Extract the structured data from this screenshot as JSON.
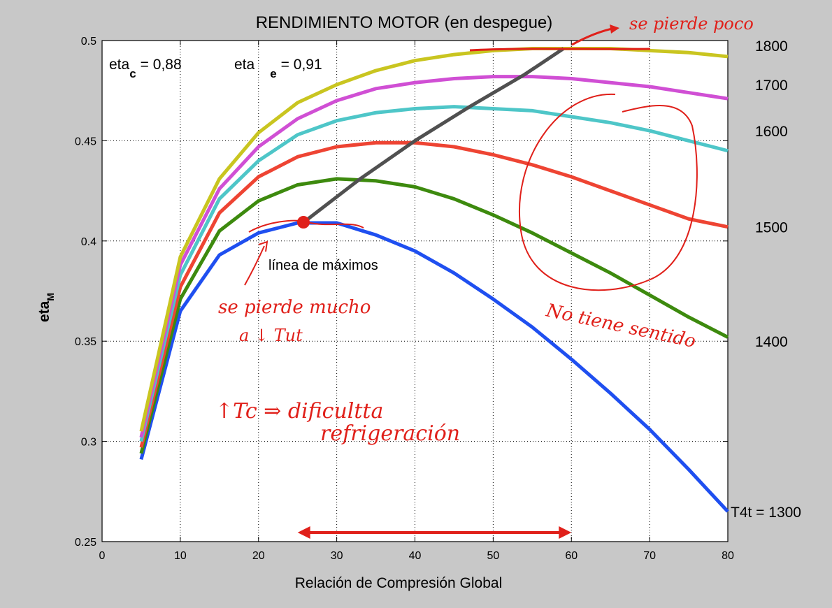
{
  "chart_data": {
    "type": "line",
    "title": "RENDIMIENTO MOTOR (en despegue)",
    "xlabel": "Relación de Compresión Global",
    "ylabel": "eta",
    "ylabel_sub": "M",
    "xlim": [
      0,
      80
    ],
    "ylim": [
      0.25,
      0.5
    ],
    "xticks": [
      0,
      10,
      20,
      30,
      40,
      50,
      60,
      70,
      80
    ],
    "yticks": [
      0.25,
      0.3,
      0.35,
      0.4,
      0.45,
      0.5
    ],
    "grid": true,
    "params": {
      "c_pre": "eta",
      "c_sub": "c",
      "c_val": "= 0,88",
      "e_pre": "eta",
      "e_sub": "e",
      "e_val": "= 0,91"
    },
    "x": [
      5,
      10,
      15,
      20,
      25,
      30,
      35,
      40,
      45,
      50,
      55,
      60,
      65,
      70,
      75,
      80
    ],
    "series": [
      {
        "label": "T4t = 1300",
        "color": "#1f4ff0",
        "values": [
          0.291,
          0.365,
          0.393,
          0.404,
          0.409,
          0.409,
          0.403,
          0.395,
          0.384,
          0.371,
          0.357,
          0.341,
          0.324,
          0.306,
          0.286,
          0.265
        ]
      },
      {
        "label": "1400",
        "color": "#3d8a0e",
        "values": [
          0.294,
          0.371,
          0.405,
          0.42,
          0.428,
          0.431,
          0.43,
          0.427,
          0.421,
          0.413,
          0.404,
          0.394,
          0.384,
          0.373,
          0.362,
          0.352
        ]
      },
      {
        "label": "1500",
        "color": "#ee4433",
        "values": [
          0.297,
          0.377,
          0.414,
          0.432,
          0.442,
          0.447,
          0.449,
          0.449,
          0.447,
          0.443,
          0.438,
          0.432,
          0.425,
          0.418,
          0.411,
          0.407
        ]
      },
      {
        "label": "1600",
        "color": "#4ec6c8",
        "values": [
          0.3,
          0.383,
          0.421,
          0.44,
          0.453,
          0.46,
          0.464,
          0.466,
          0.467,
          0.466,
          0.465,
          0.462,
          0.459,
          0.455,
          0.45,
          0.445
        ]
      },
      {
        "label": "1700",
        "color": "#d04fd4",
        "values": [
          0.302,
          0.388,
          0.426,
          0.447,
          0.461,
          0.47,
          0.476,
          0.479,
          0.481,
          0.482,
          0.482,
          0.481,
          0.479,
          0.477,
          0.474,
          0.471
        ]
      },
      {
        "label": "1800",
        "color": "#c9c520",
        "values": [
          0.305,
          0.392,
          0.431,
          0.454,
          0.469,
          0.478,
          0.485,
          0.49,
          0.493,
          0.495,
          0.496,
          0.496,
          0.496,
          0.495,
          0.494,
          0.492
        ]
      }
    ],
    "max_line": {
      "label": "línea de máximos",
      "color": "#505050",
      "x": [
        26,
        33,
        40,
        47,
        54,
        59
      ],
      "values": [
        0.41,
        0.431,
        0.45,
        0.467,
        0.483,
        0.496
      ]
    }
  },
  "annotations": {
    "ink_color": "#e0201a",
    "top_right": "se pierde poco",
    "loss_line1": "se pierde mucho",
    "loss_line2": "a ↓ Tut",
    "no_sense": "No tiene sentido",
    "cool_line1": "↑Tc ⇒ dificultta",
    "cool_line2": "refrigeración",
    "range_from": 25,
    "range_to": 60
  }
}
